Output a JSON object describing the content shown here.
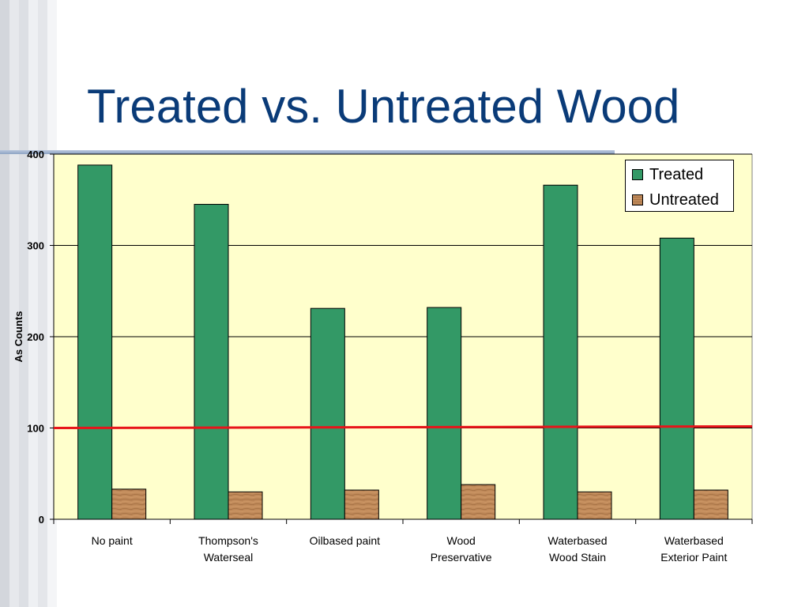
{
  "slide": {
    "title": "Treated vs. Untreated Wood"
  },
  "chart_data": {
    "type": "bar",
    "title": "",
    "xlabel": "",
    "ylabel": "As Counts",
    "ylim": [
      0,
      400
    ],
    "yticks": [
      0,
      100,
      200,
      300,
      400
    ],
    "grid": true,
    "legend_position": "top-right",
    "categories": [
      [
        "No paint"
      ],
      [
        "Thompson's",
        "Waterseal"
      ],
      [
        "Oilbased paint"
      ],
      [
        "Wood",
        "Preservative"
      ],
      [
        "Waterbased",
        "Wood Stain"
      ],
      [
        "Waterbased",
        "Exterior Paint"
      ]
    ],
    "series": [
      {
        "name": "Treated",
        "color": "#339966",
        "values": [
          388,
          345,
          231,
          232,
          366,
          308
        ]
      },
      {
        "name": "Untreated",
        "color": "#b9845a",
        "values": [
          33,
          30,
          32,
          38,
          30,
          32
        ]
      }
    ],
    "reference_line": {
      "value": 100,
      "color": "#e8141a"
    },
    "plot_background": "#ffffcc"
  }
}
